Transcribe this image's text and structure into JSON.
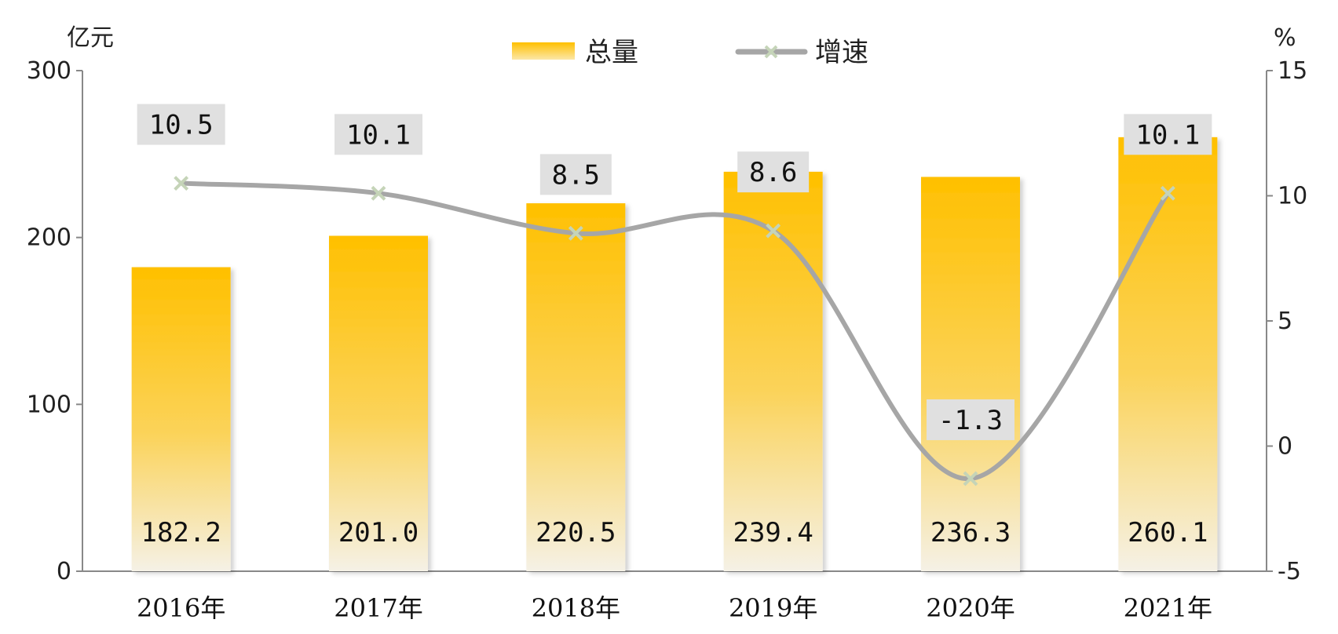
{
  "chart_data": {
    "type": "bar",
    "categories": [
      "2016年",
      "2017年",
      "2018年",
      "2019年",
      "2020年",
      "2021年"
    ],
    "series": [
      {
        "name": "总量",
        "type": "bar",
        "axis": "left",
        "values": [
          182.2,
          201.0,
          220.5,
          239.4,
          236.3,
          260.1
        ],
        "labels": [
          "182.2",
          "201.0",
          "220.5",
          "239.4",
          "236.3",
          "260.1"
        ]
      },
      {
        "name": "增速",
        "type": "line",
        "axis": "right",
        "values": [
          10.5,
          10.1,
          8.5,
          8.6,
          -1.3,
          10.1
        ],
        "labels": [
          "10.5",
          "10.1",
          "8.5",
          "8.6",
          "-1.3",
          "10.1"
        ]
      }
    ],
    "left_axis": {
      "unit": "亿元",
      "ylim": [
        0,
        300
      ],
      "ticks": [
        "0",
        "100",
        "200",
        "300"
      ]
    },
    "right_axis": {
      "unit": "%",
      "ylim": [
        -5,
        15
      ],
      "ticks": [
        "-5",
        "0",
        "5",
        "10",
        "15"
      ]
    },
    "legend": {
      "placement": "top-center",
      "items": [
        "总量",
        "增速"
      ]
    },
    "grid": false,
    "colors": {
      "bar_top": "#FFC000",
      "bar_bottom": "#F5F1E6",
      "line": "#A6A6A6",
      "marker": "#C5D4B8",
      "label_box": "#E0E0E0",
      "axis": "#888888"
    }
  }
}
